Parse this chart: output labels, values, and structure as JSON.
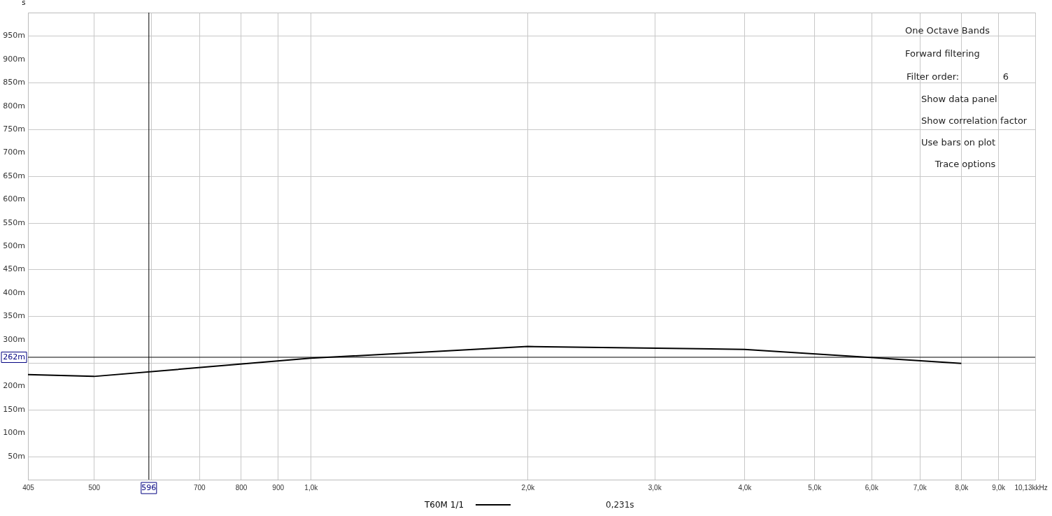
{
  "chart_data": {
    "type": "line",
    "ylabel": "s",
    "log": "x",
    "grid": true,
    "legend": "bottom",
    "line_style": "solid",
    "xlim": [
      405,
      10130
    ],
    "ylim": [
      0,
      1000
    ],
    "xticks": [
      405,
      500,
      {
        "value": 600,
        "label": null
      },
      700,
      800,
      900,
      {
        "value": 1000,
        "label": "1,0k"
      },
      {
        "value": 2000,
        "label": "2,0k"
      },
      {
        "value": 3000,
        "label": "3,0k"
      },
      {
        "value": 4000,
        "label": "4,0k"
      },
      {
        "value": 5000,
        "label": "5,0k"
      },
      {
        "value": 6000,
        "label": "6,0k"
      },
      {
        "value": 7000,
        "label": "7,0k"
      },
      {
        "value": 8000,
        "label": "8,0k"
      },
      {
        "value": 9000,
        "label": "9,0k"
      },
      {
        "value": 10130,
        "label": "10,13k"
      }
    ],
    "xlabel": "kHz",
    "yticks": [
      {
        "value": 50,
        "label": "50m"
      },
      {
        "value": 100,
        "label": "100m"
      },
      {
        "value": 150,
        "label": "150m"
      },
      {
        "value": 200,
        "label": "200m"
      },
      {
        "value": 250,
        "label": null
      },
      {
        "value": 300,
        "label": "300m"
      },
      {
        "value": 350,
        "label": "350m"
      },
      {
        "value": 400,
        "label": "400m"
      },
      {
        "value": 450,
        "label": "450m"
      },
      {
        "value": 500,
        "label": "500m"
      },
      {
        "value": 550,
        "label": "550m"
      },
      {
        "value": 600,
        "label": "600m"
      },
      {
        "value": 650,
        "label": "650m"
      },
      {
        "value": 700,
        "label": "700m"
      },
      {
        "value": 750,
        "label": "750m"
      },
      {
        "value": 800,
        "label": "800m"
      },
      {
        "value": 850,
        "label": "850m"
      },
      {
        "value": 900,
        "label": "900m"
      },
      {
        "value": 950,
        "label": "950m"
      }
    ],
    "series": [
      {
        "name": "T60M 1/1",
        "color": "#000000",
        "x": [
          405,
          500,
          1000,
          2000,
          4000,
          8000
        ],
        "values": [
          225,
          221,
          260,
          285,
          279,
          249
        ]
      }
    ],
    "ref_lines": [
      {
        "axis": "x",
        "value": 596,
        "label": "596",
        "color": "#000000"
      },
      {
        "axis": "y",
        "value": 262,
        "label": "262m",
        "color": "#000000"
      }
    ],
    "annotations": [
      "0,231s",
      "One Octave Bands",
      "Forward filtering",
      "Filter order:",
      "6",
      "Show data panel",
      "Show correlation factor",
      "Use bars on plot",
      "Trace options"
    ]
  }
}
